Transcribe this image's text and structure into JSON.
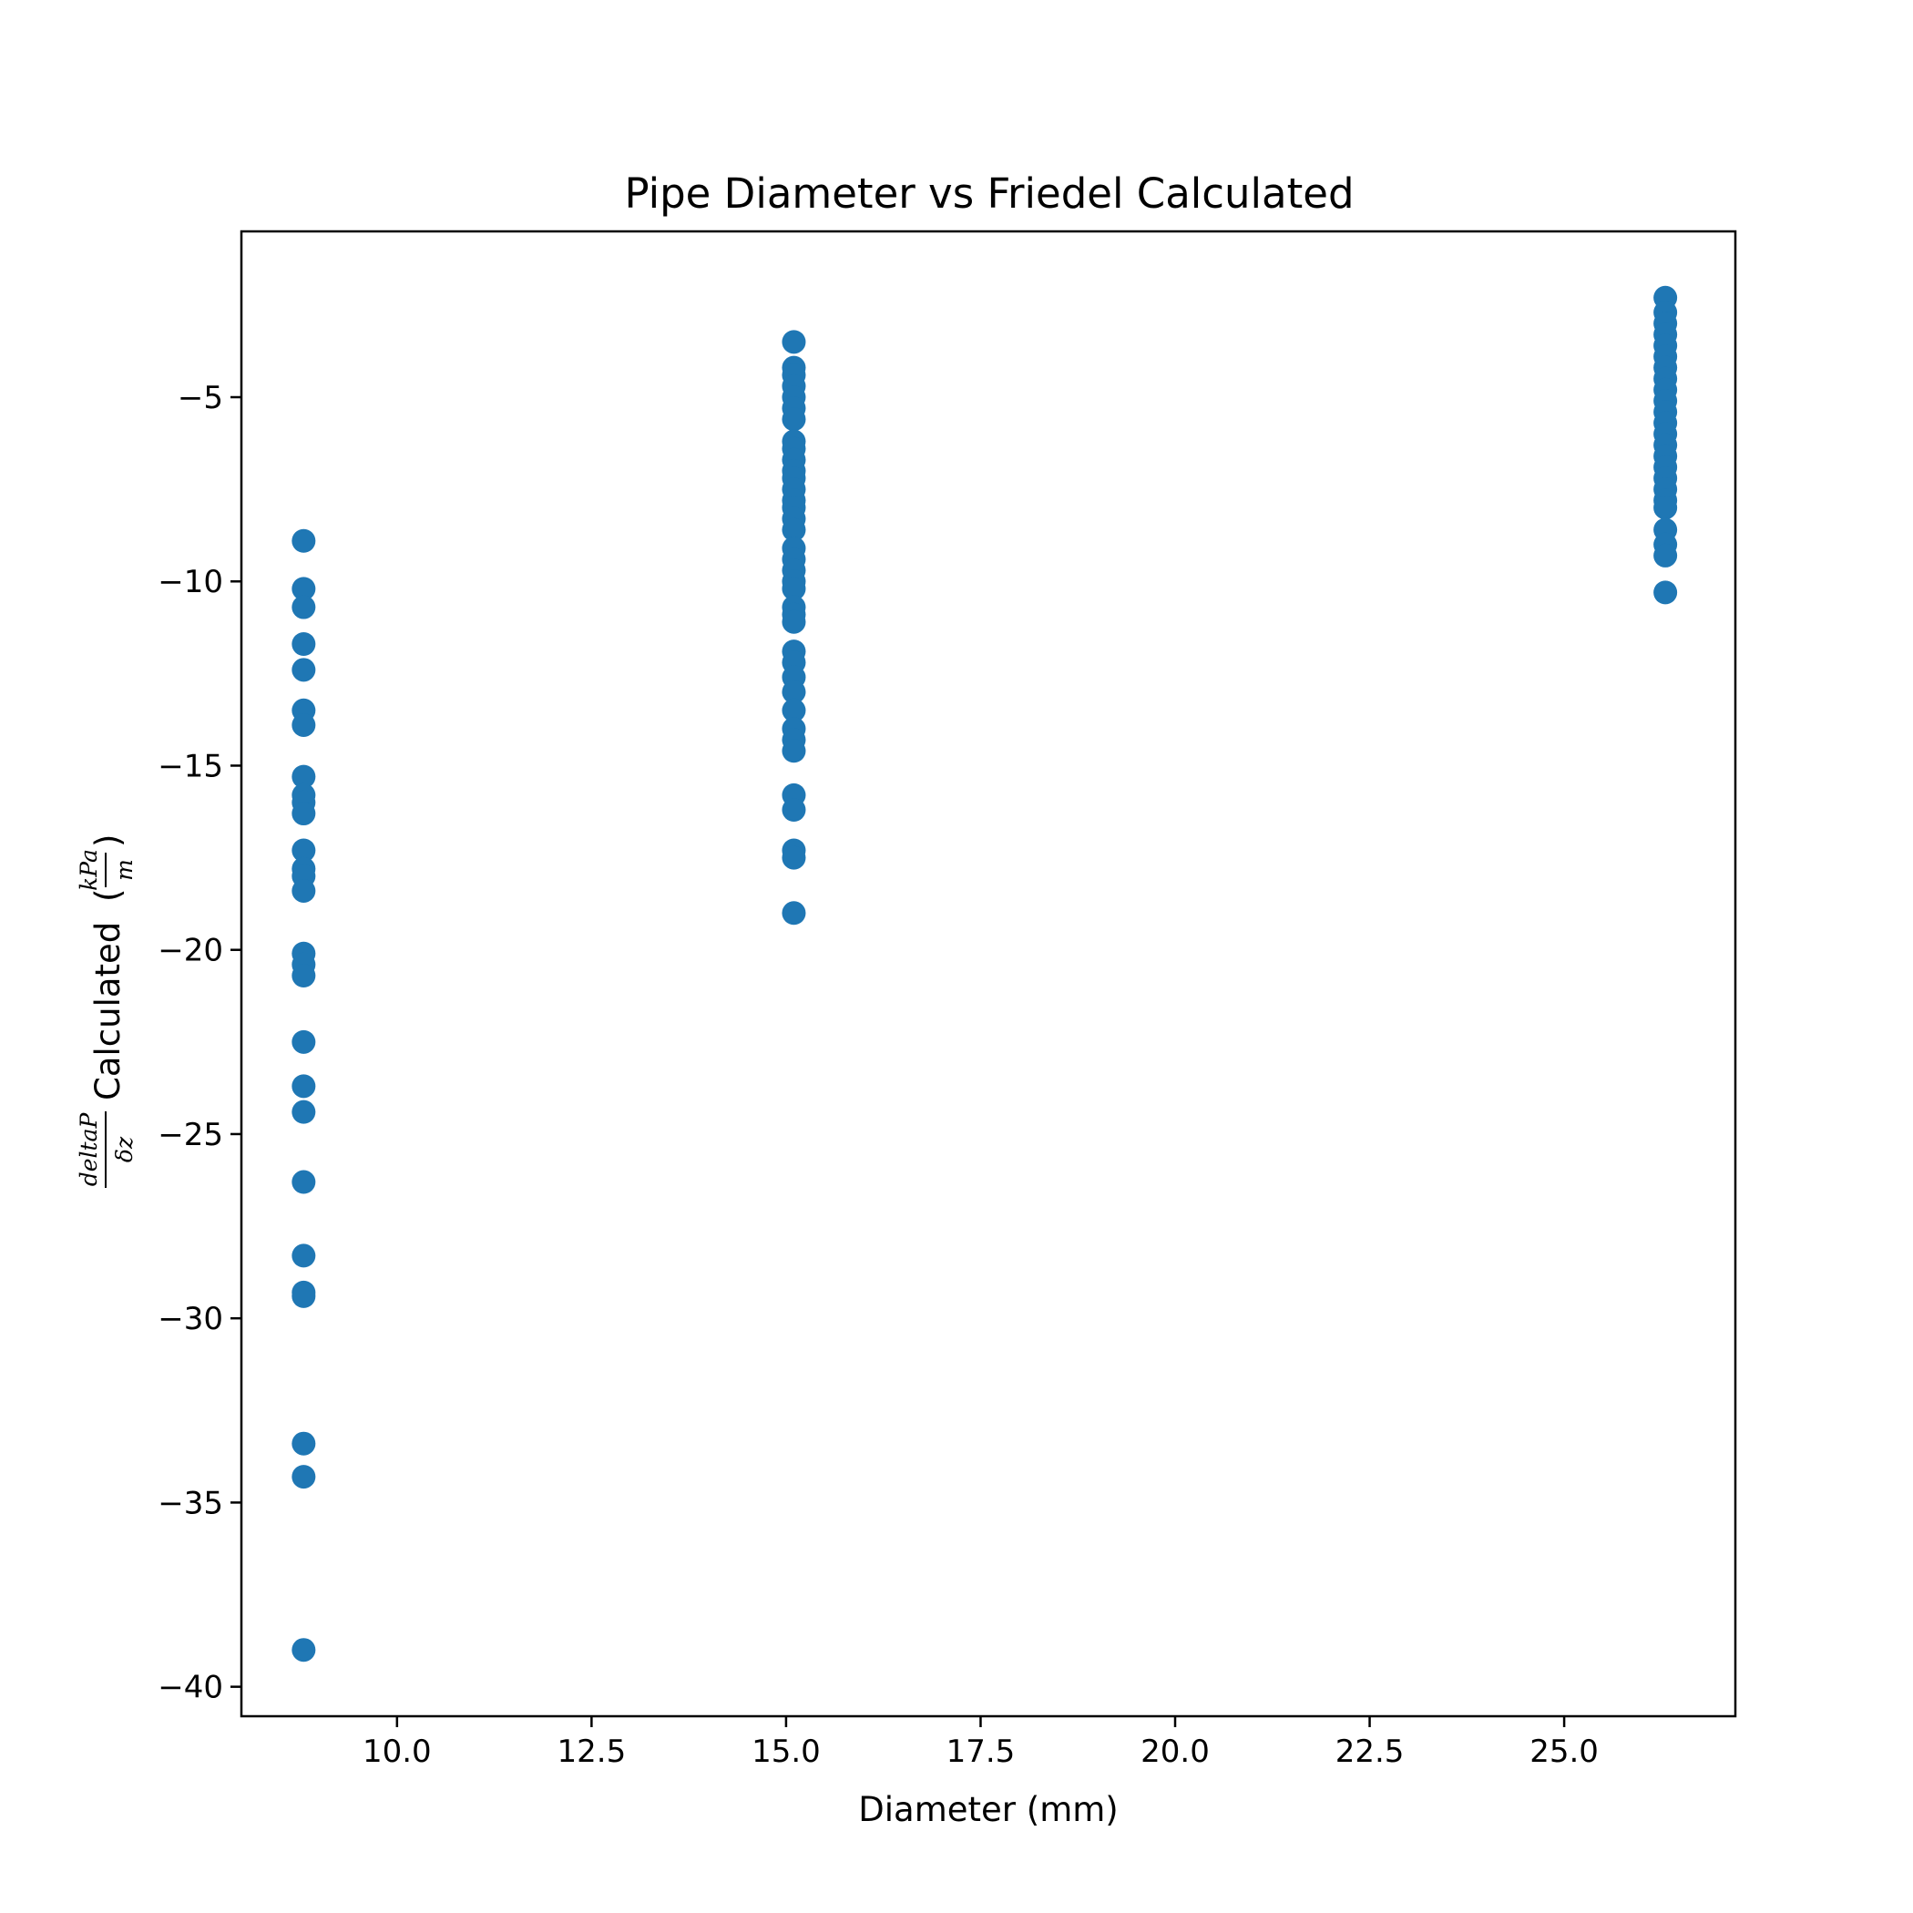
{
  "chart_data": {
    "type": "scatter",
    "title": "Pipe Diameter vs Friedel Calculated",
    "xlabel": "Diameter (mm)",
    "ylabel": {
      "numerator": "deltaP",
      "denominator": "δz",
      "text": "Calculated",
      "unit_numerator": "kPa",
      "unit_denominator": "m"
    },
    "xlim": [
      8.0,
      27.2
    ],
    "ylim": [
      -40.8,
      -0.5
    ],
    "grid": false,
    "marker_color": "#1f77b4",
    "xticks": [
      10.0,
      12.5,
      15.0,
      17.5,
      20.0,
      22.5,
      25.0
    ],
    "xtick_labels": [
      "10.0",
      "12.5",
      "15.0",
      "17.5",
      "20.0",
      "22.5",
      "25.0"
    ],
    "yticks": [
      -5,
      -10,
      -15,
      -20,
      -25,
      -30,
      -35,
      -40
    ],
    "ytick_labels": [
      "−5",
      "−10",
      "−15",
      "−20",
      "−25",
      "−30",
      "−35",
      "−40"
    ],
    "series": [
      {
        "x": 8.8,
        "y": [
          -8.9,
          -10.2,
          -10.7,
          -11.7,
          -12.4,
          -13.5,
          -13.9,
          -15.3,
          -15.8,
          -16.0,
          -16.3,
          -17.3,
          -17.8,
          -18.0,
          -18.4,
          -20.1,
          -20.4,
          -20.7,
          -22.5,
          -23.7,
          -24.4,
          -26.3,
          -28.3,
          -29.3,
          -29.4,
          -33.4,
          -34.3,
          -39.0
        ]
      },
      {
        "x": 15.1,
        "y": [
          -3.5,
          -4.2,
          -4.4,
          -4.7,
          -5.0,
          -5.3,
          -5.6,
          -6.2,
          -6.4,
          -6.7,
          -7.0,
          -7.2,
          -7.5,
          -7.8,
          -8.0,
          -8.3,
          -8.6,
          -9.1,
          -9.4,
          -9.7,
          -10.0,
          -10.2,
          -10.7,
          -10.9,
          -11.1,
          -11.9,
          -12.2,
          -12.6,
          -13.0,
          -13.5,
          -14.0,
          -14.3,
          -14.6,
          -15.8,
          -16.2,
          -17.3,
          -17.5,
          -19.0
        ]
      },
      {
        "x": 26.3,
        "y": [
          -2.3,
          -2.7,
          -3.0,
          -3.3,
          -3.6,
          -3.9,
          -4.2,
          -4.5,
          -4.8,
          -5.1,
          -5.4,
          -5.7,
          -6.0,
          -6.3,
          -6.6,
          -6.9,
          -7.2,
          -7.5,
          -7.8,
          -8.0,
          -8.6,
          -9.0,
          -9.3,
          -10.3
        ]
      }
    ]
  }
}
